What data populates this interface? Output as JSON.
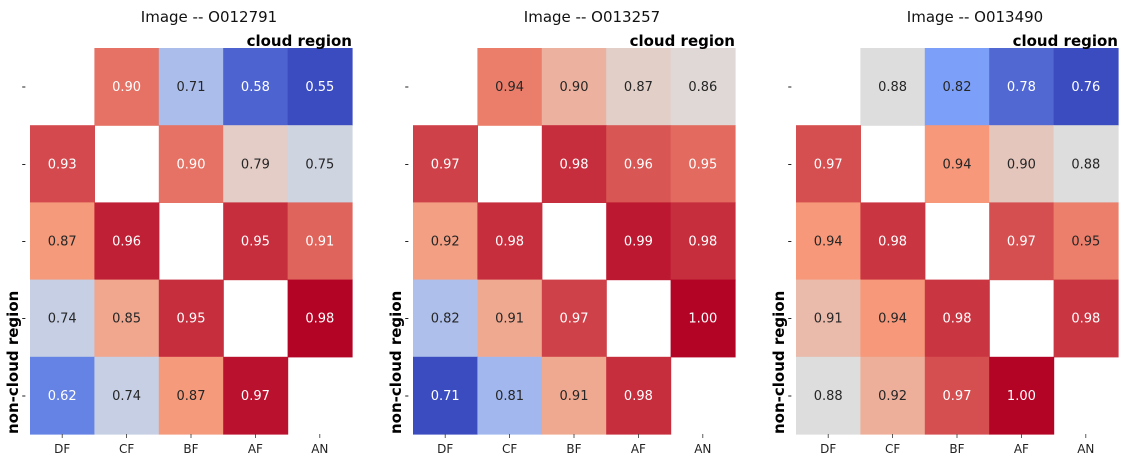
{
  "chart_data": [
    {
      "type": "heatmap",
      "title": "Image -- O012791",
      "top_label": "cloud region",
      "side_label": "non-cloud region",
      "x_tick_labels": [
        "DF",
        "CF",
        "BF",
        "AF",
        "AN"
      ],
      "y_tick_labels": [
        "-",
        "-",
        "-",
        "-",
        "-"
      ],
      "colorscale": "coolwarm",
      "values": [
        [
          null,
          0.9,
          0.71,
          0.58,
          0.55
        ],
        [
          0.93,
          null,
          0.9,
          0.79,
          0.75
        ],
        [
          0.87,
          0.96,
          null,
          0.95,
          0.91
        ],
        [
          0.74,
          0.85,
          0.95,
          null,
          0.98
        ],
        [
          0.62,
          0.74,
          0.87,
          0.97,
          null
        ]
      ],
      "value_labels": [
        [
          "",
          "0.90",
          "0.71",
          "0.58",
          "0.55"
        ],
        [
          "0.93",
          "",
          "0.90",
          "0.79",
          "0.75"
        ],
        [
          "0.87",
          "0.96",
          "",
          "0.95",
          "0.91"
        ],
        [
          "0.74",
          "0.85",
          "0.95",
          "",
          "0.98"
        ],
        [
          "0.62",
          "0.74",
          "0.87",
          "0.97",
          ""
        ]
      ]
    },
    {
      "type": "heatmap",
      "title": "Image -- O013257",
      "top_label": "cloud region",
      "side_label": "non-cloud region",
      "x_tick_labels": [
        "DF",
        "CF",
        "BF",
        "AF",
        "AN"
      ],
      "y_tick_labels": [
        "-",
        "-",
        "-",
        "-",
        "-"
      ],
      "colorscale": "coolwarm",
      "values": [
        [
          null,
          0.94,
          0.9,
          0.87,
          0.86
        ],
        [
          0.97,
          null,
          0.98,
          0.96,
          0.95
        ],
        [
          0.92,
          0.98,
          null,
          0.99,
          0.98
        ],
        [
          0.82,
          0.91,
          0.97,
          null,
          1.0
        ],
        [
          0.71,
          0.81,
          0.91,
          0.98,
          null
        ]
      ],
      "value_labels": [
        [
          "",
          "0.94",
          "0.90",
          "0.87",
          "0.86"
        ],
        [
          "0.97",
          "",
          "0.98",
          "0.96",
          "0.95"
        ],
        [
          "0.92",
          "0.98",
          "",
          "0.99",
          "0.98"
        ],
        [
          "0.82",
          "0.91",
          "0.97",
          "",
          "1.00"
        ],
        [
          "0.71",
          "0.81",
          "0.91",
          "0.98",
          ""
        ]
      ]
    },
    {
      "type": "heatmap",
      "title": "Image -- O013490",
      "top_label": "cloud region",
      "side_label": "non-cloud region",
      "x_tick_labels": [
        "DF",
        "CF",
        "BF",
        "AF",
        "AN"
      ],
      "y_tick_labels": [
        "-",
        "-",
        "-",
        "-",
        "-"
      ],
      "colorscale": "coolwarm",
      "values": [
        [
          null,
          0.88,
          0.82,
          0.78,
          0.76
        ],
        [
          0.97,
          null,
          0.94,
          0.9,
          0.88
        ],
        [
          0.94,
          0.98,
          null,
          0.97,
          0.95
        ],
        [
          0.91,
          0.94,
          0.98,
          null,
          0.98
        ],
        [
          0.88,
          0.92,
          0.97,
          1.0,
          null
        ]
      ],
      "value_labels": [
        [
          "",
          "0.88",
          "0.82",
          "0.78",
          "0.76"
        ],
        [
          "0.97",
          "",
          "0.94",
          "0.90",
          "0.88"
        ],
        [
          "0.94",
          "0.98",
          "",
          "0.97",
          "0.95"
        ],
        [
          "0.91",
          "0.94",
          "0.98",
          "",
          "0.98"
        ],
        [
          "0.88",
          "0.92",
          "0.97",
          "1.00",
          ""
        ]
      ]
    }
  ]
}
